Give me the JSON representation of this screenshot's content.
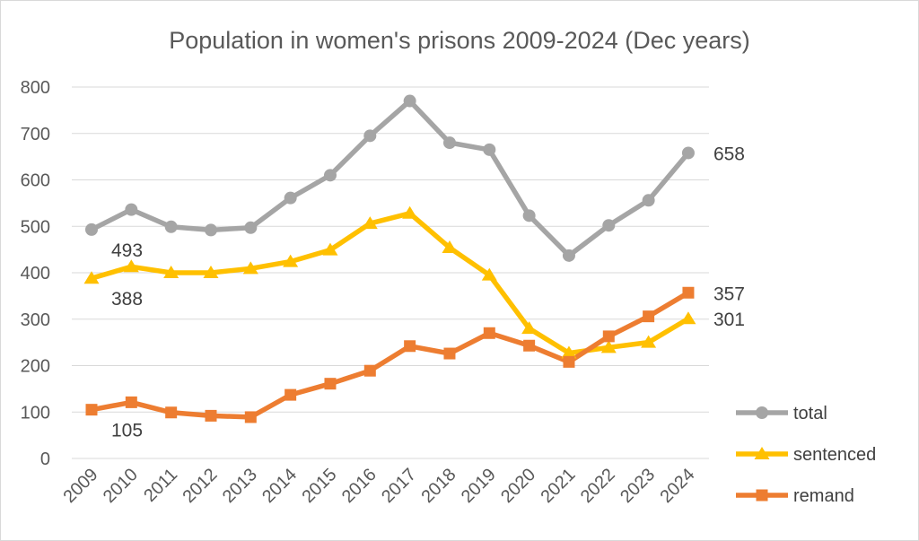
{
  "chart_data": {
    "type": "line",
    "title": "Population in women's prisons 2009-2024 (Dec years)",
    "xlabel": "",
    "ylabel": "",
    "ylim": [
      0,
      800
    ],
    "yticks": [
      0,
      100,
      200,
      300,
      400,
      500,
      600,
      700,
      800
    ],
    "grid": true,
    "legend_position": "right",
    "categories": [
      "2009",
      "2010",
      "2011",
      "2012",
      "2013",
      "2014",
      "2015",
      "2016",
      "2017",
      "2018",
      "2019",
      "2020",
      "2021",
      "2022",
      "2023",
      "2024"
    ],
    "series": [
      {
        "name": "total",
        "color": "#a5a5a5",
        "marker": "circle",
        "values": [
          493,
          536,
          499,
          492,
          497,
          561,
          610,
          695,
          770,
          680,
          665,
          523,
          437,
          502,
          556,
          658
        ]
      },
      {
        "name": "sentenced",
        "color": "#ffc000",
        "marker": "triangle",
        "values": [
          388,
          413,
          400,
          400,
          409,
          424,
          449,
          506,
          528,
          454,
          395,
          280,
          227,
          239,
          250,
          301
        ]
      },
      {
        "name": "remand",
        "color": "#ed7d31",
        "marker": "square",
        "values": [
          105,
          121,
          99,
          92,
          89,
          137,
          161,
          189,
          242,
          226,
          270,
          243,
          208,
          263,
          306,
          357
        ]
      }
    ],
    "data_labels": [
      {
        "series": "total",
        "index": 0,
        "text": "493",
        "placement": "below-right"
      },
      {
        "series": "sentenced",
        "index": 0,
        "text": "388",
        "placement": "below-right"
      },
      {
        "series": "remand",
        "index": 0,
        "text": "105",
        "placement": "below-right"
      },
      {
        "series": "total",
        "index": 15,
        "text": "658",
        "placement": "right"
      },
      {
        "series": "remand",
        "index": 15,
        "text": "357",
        "placement": "right"
      },
      {
        "series": "sentenced",
        "index": 15,
        "text": "301",
        "placement": "right"
      }
    ]
  }
}
